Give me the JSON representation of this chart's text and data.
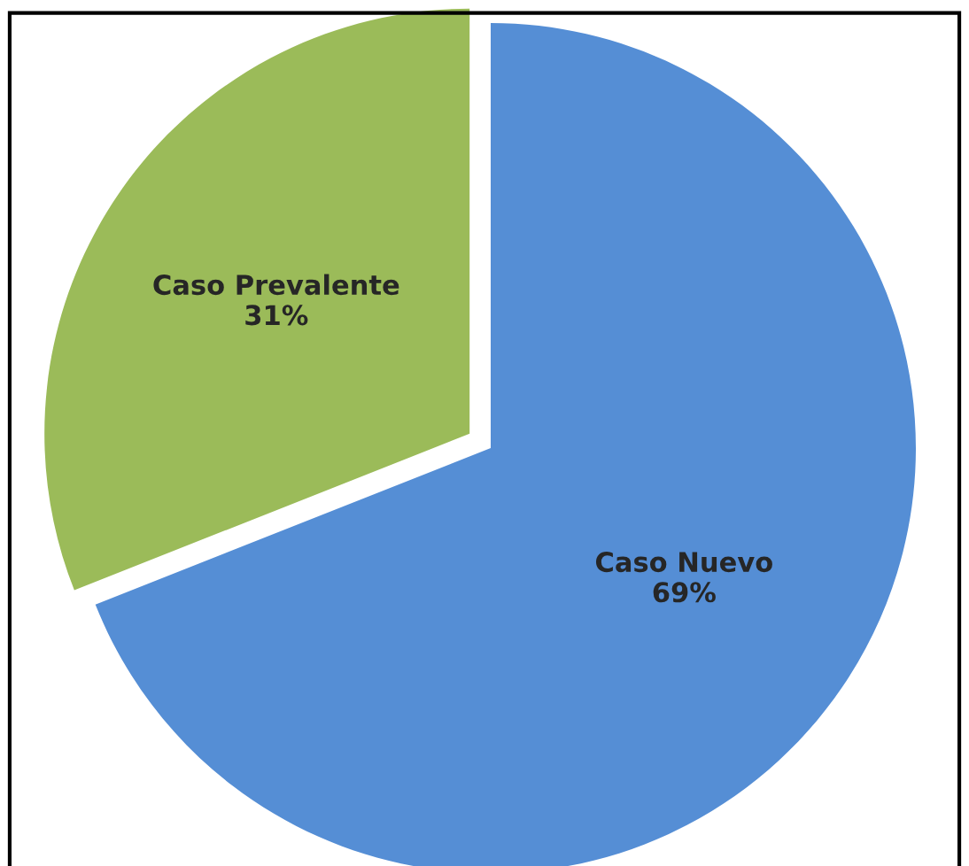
{
  "chart_data": {
    "type": "pie",
    "categories": [
      "Caso Nuevo",
      "Caso Prevalente"
    ],
    "values": [
      69,
      31
    ],
    "value_labels": [
      "69%",
      "31%"
    ],
    "colors": [
      "#558ed5",
      "#9bbb59"
    ],
    "legend": false
  }
}
